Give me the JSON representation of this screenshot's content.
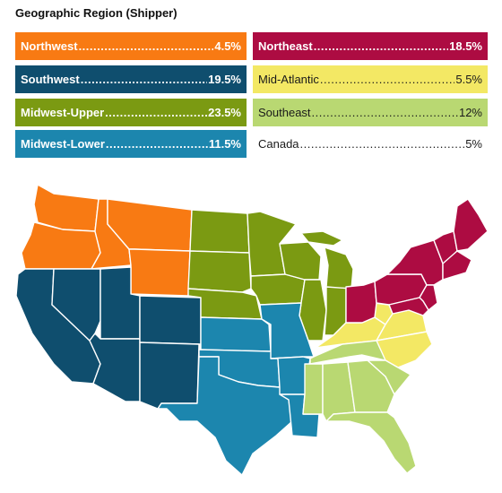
{
  "title": "Geographic Region (Shipper)",
  "legend": [
    {
      "name": "Northwest",
      "value": "4.5%",
      "color": "#f87a13",
      "text_color": "#ffffff"
    },
    {
      "name": "Northeast",
      "value": "18.5%",
      "color": "#ad0c42",
      "text_color": "#ffffff"
    },
    {
      "name": "Southwest",
      "value": "19.5%",
      "color": "#0f4e6e",
      "text_color": "#ffffff"
    },
    {
      "name": "Mid-Atlantic",
      "value": "5.5%",
      "color": "#f3e864",
      "text_color": "#1a1a1a"
    },
    {
      "name": "Midwest-Upper",
      "value": "23.5%",
      "color": "#7b9a12",
      "text_color": "#ffffff"
    },
    {
      "name": "Southeast",
      "value": "12%",
      "color": "#b9d872",
      "text_color": "#1a1a1a"
    },
    {
      "name": "Midwest-Lower",
      "value": "11.5%",
      "color": "#1c86ae",
      "text_color": "#ffffff"
    },
    {
      "name": "Canada",
      "value": "5%",
      "color": "#ffffff",
      "text_color": "#1a1a1a"
    }
  ]
}
